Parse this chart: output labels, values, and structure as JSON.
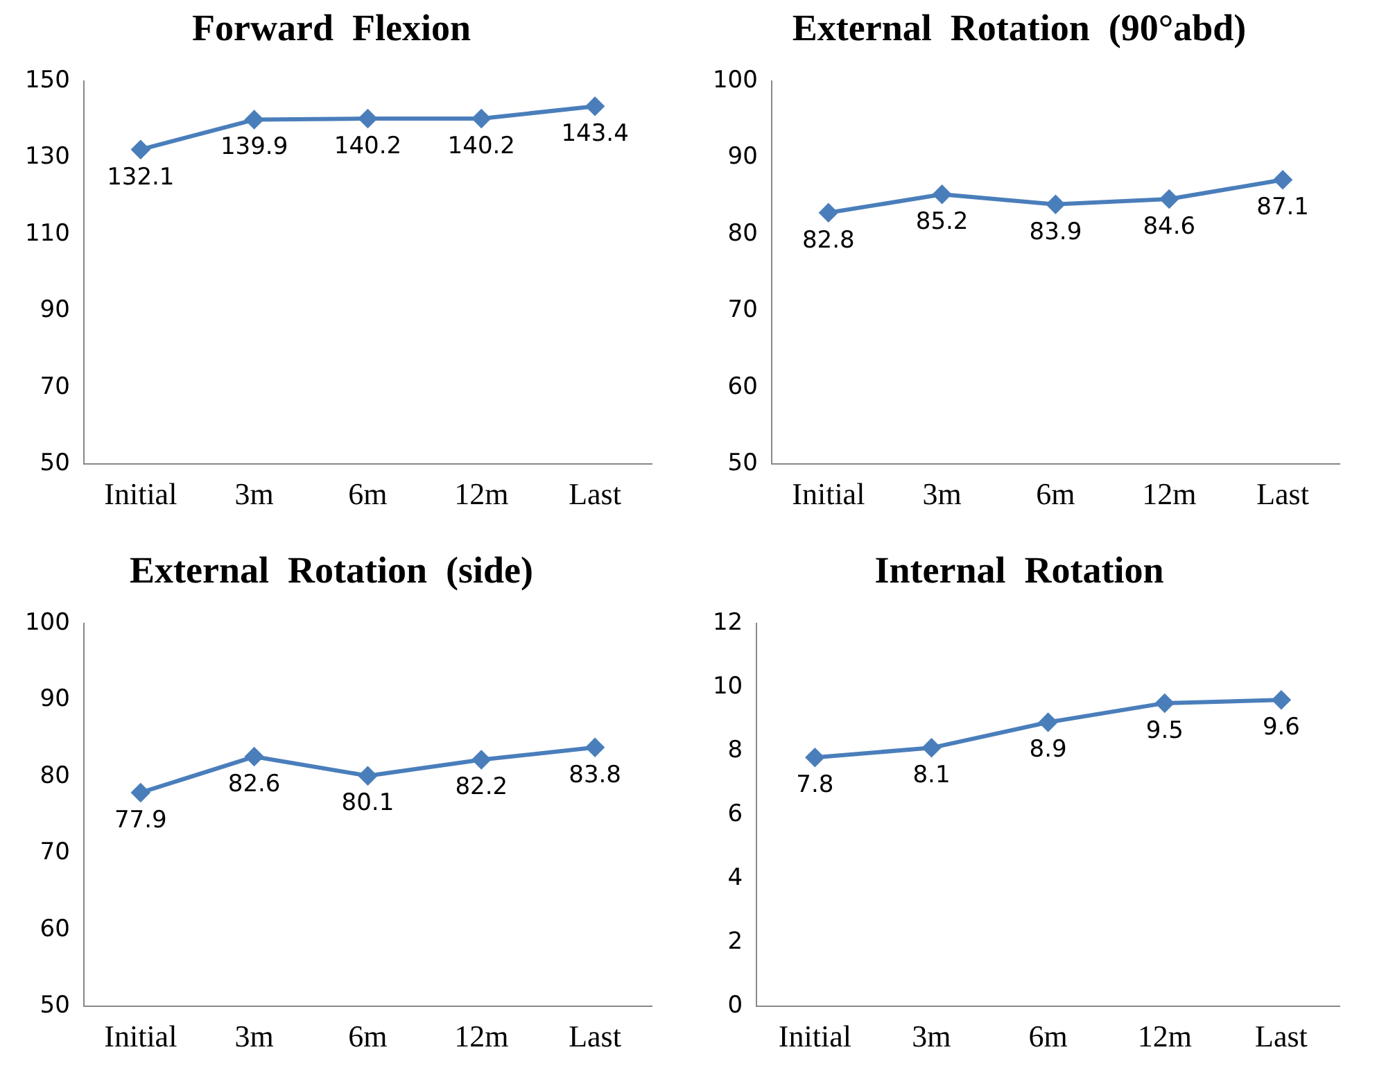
{
  "chart_data": [
    {
      "type": "line",
      "title": "Forward  Flexion",
      "categories": [
        "Initial",
        "3m",
        "6m",
        "12m",
        "Last"
      ],
      "series": [
        {
          "color": "#4a7ebb",
          "values": [
            132.1,
            139.9,
            140.2,
            140.2,
            143.4
          ]
        }
      ],
      "ylim": [
        50,
        150
      ],
      "yticks": [
        50,
        70,
        90,
        110,
        130,
        150
      ],
      "marker": "diamond",
      "data_labels": true
    },
    {
      "type": "line",
      "title": "External  Rotation  (90°abd)",
      "categories": [
        "Initial",
        "3m",
        "6m",
        "12m",
        "Last"
      ],
      "series": [
        {
          "color": "#4a7ebb",
          "values": [
            82.8,
            85.2,
            83.9,
            84.6,
            87.1
          ]
        }
      ],
      "ylim": [
        50,
        100
      ],
      "yticks": [
        50,
        60,
        70,
        80,
        90,
        100
      ],
      "marker": "diamond",
      "data_labels": true
    },
    {
      "type": "line",
      "title": "External  Rotation  (side)",
      "categories": [
        "Initial",
        "3m",
        "6m",
        "12m",
        "Last"
      ],
      "series": [
        {
          "color": "#4a7ebb",
          "values": [
            77.9,
            82.6,
            80.1,
            82.2,
            83.8
          ]
        }
      ],
      "ylim": [
        50,
        100
      ],
      "yticks": [
        50,
        60,
        70,
        80,
        90,
        100
      ],
      "marker": "diamond",
      "data_labels": true
    },
    {
      "type": "line",
      "title": "Internal  Rotation",
      "categories": [
        "Initial",
        "3m",
        "6m",
        "12m",
        "Last"
      ],
      "series": [
        {
          "color": "#4a7ebb",
          "values": [
            7.8,
            8.1,
            8.9,
            9.5,
            9.6
          ]
        }
      ],
      "ylim": [
        0,
        12
      ],
      "yticks": [
        0,
        2,
        4,
        6,
        8,
        10,
        12
      ],
      "marker": "diamond",
      "data_labels": true
    }
  ]
}
